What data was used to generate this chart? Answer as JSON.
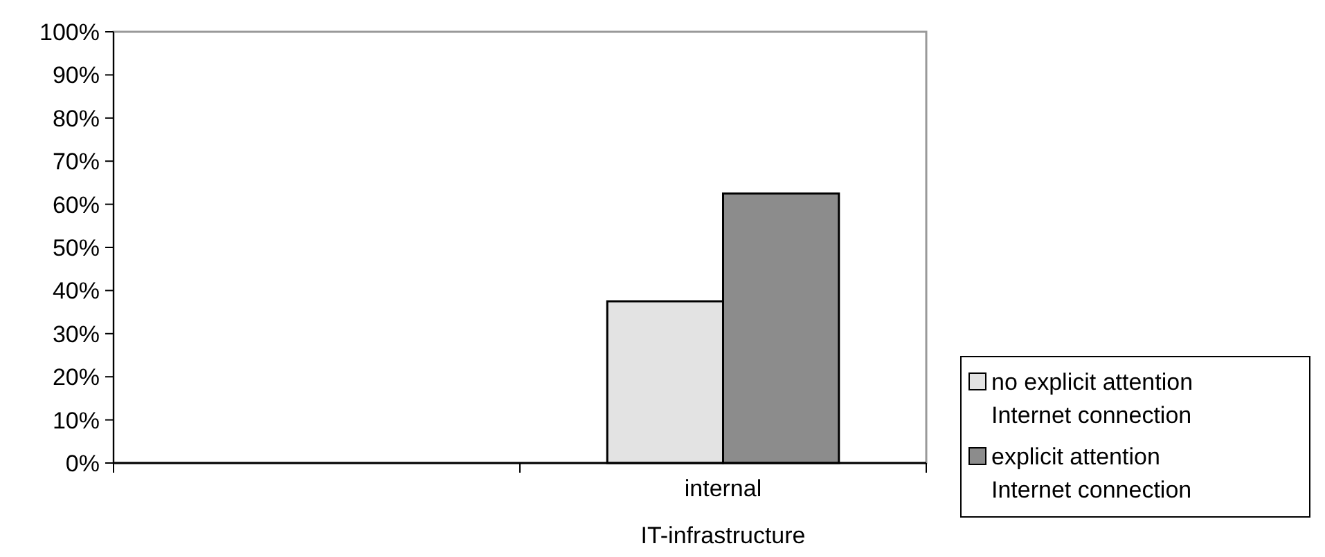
{
  "chart_data": {
    "type": "bar",
    "categories": [
      null,
      "internal IT-infrastructure"
    ],
    "series": [
      {
        "name": "no explicit attention Internet connection",
        "color": "#e3e3e3",
        "values": [
          null,
          37.5
        ]
      },
      {
        "name": "explicit attention Internet connection",
        "color": "#8c8c8c",
        "values": [
          null,
          62.5
        ]
      }
    ],
    "ylim": [
      0,
      100
    ],
    "yticks": [
      {
        "value": 0,
        "label": "0%"
      },
      {
        "value": 10,
        "label": "10%"
      },
      {
        "value": 20,
        "label": "20%"
      },
      {
        "value": 30,
        "label": "30%"
      },
      {
        "value": 40,
        "label": "40%"
      },
      {
        "value": 50,
        "label": "50%"
      },
      {
        "value": 60,
        "label": "60%"
      },
      {
        "value": 70,
        "label": "70%"
      },
      {
        "value": 80,
        "label": "80%"
      },
      {
        "value": 90,
        "label": "90%"
      },
      {
        "value": 100,
        "label": "100%"
      }
    ],
    "grid": false,
    "legend": "right"
  }
}
